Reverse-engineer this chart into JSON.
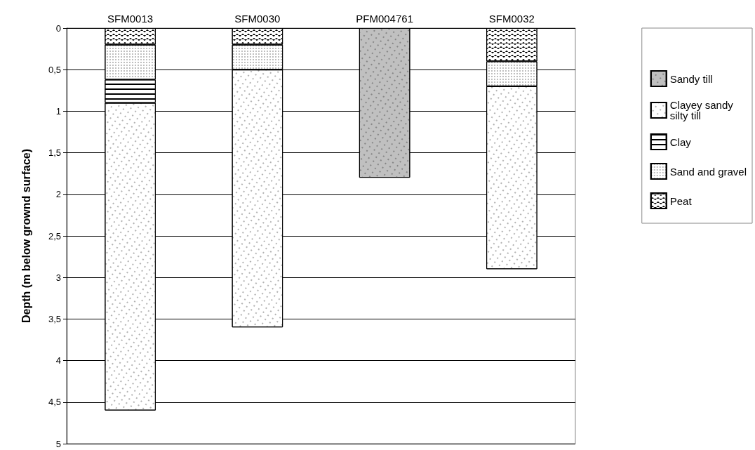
{
  "chart_data": {
    "type": "bar",
    "stacked": true,
    "ylabel": "Depth (m below grownd surface)",
    "categories": [
      "SFM0013",
      "SFM0030",
      "PFM004761",
      "SFM0032"
    ],
    "series": [
      {
        "name": "Peat",
        "color": "#ffffff",
        "values": [
          0.2,
          0.2,
          null,
          0.4
        ]
      },
      {
        "name": "Sand and gravel",
        "color": "#ffffff",
        "values": [
          0.42,
          0.3,
          null,
          0.3
        ]
      },
      {
        "name": "Clay",
        "color": "#ffffff",
        "values": [
          0.28,
          null,
          null,
          null
        ]
      },
      {
        "name": "Clayey sandy silty till",
        "color": "#ffffff",
        "values": [
          3.7,
          3.1,
          null,
          2.2
        ]
      },
      {
        "name": "Sandy till",
        "color": "#c0c0c0",
        "values": [
          null,
          null,
          1.8,
          null
        ]
      }
    ],
    "ylim": [
      5,
      0
    ],
    "yticks": [
      0,
      {
        "value": 0.5,
        "label": "0,5"
      },
      1,
      {
        "value": 1.5,
        "label": "1,5"
      },
      2,
      {
        "value": 2.5,
        "label": "2,5"
      },
      3,
      {
        "value": 3.5,
        "label": "3,5"
      },
      4,
      {
        "value": 4.5,
        "label": "4,5"
      },
      5
    ],
    "grid": "y",
    "legend": "right"
  }
}
